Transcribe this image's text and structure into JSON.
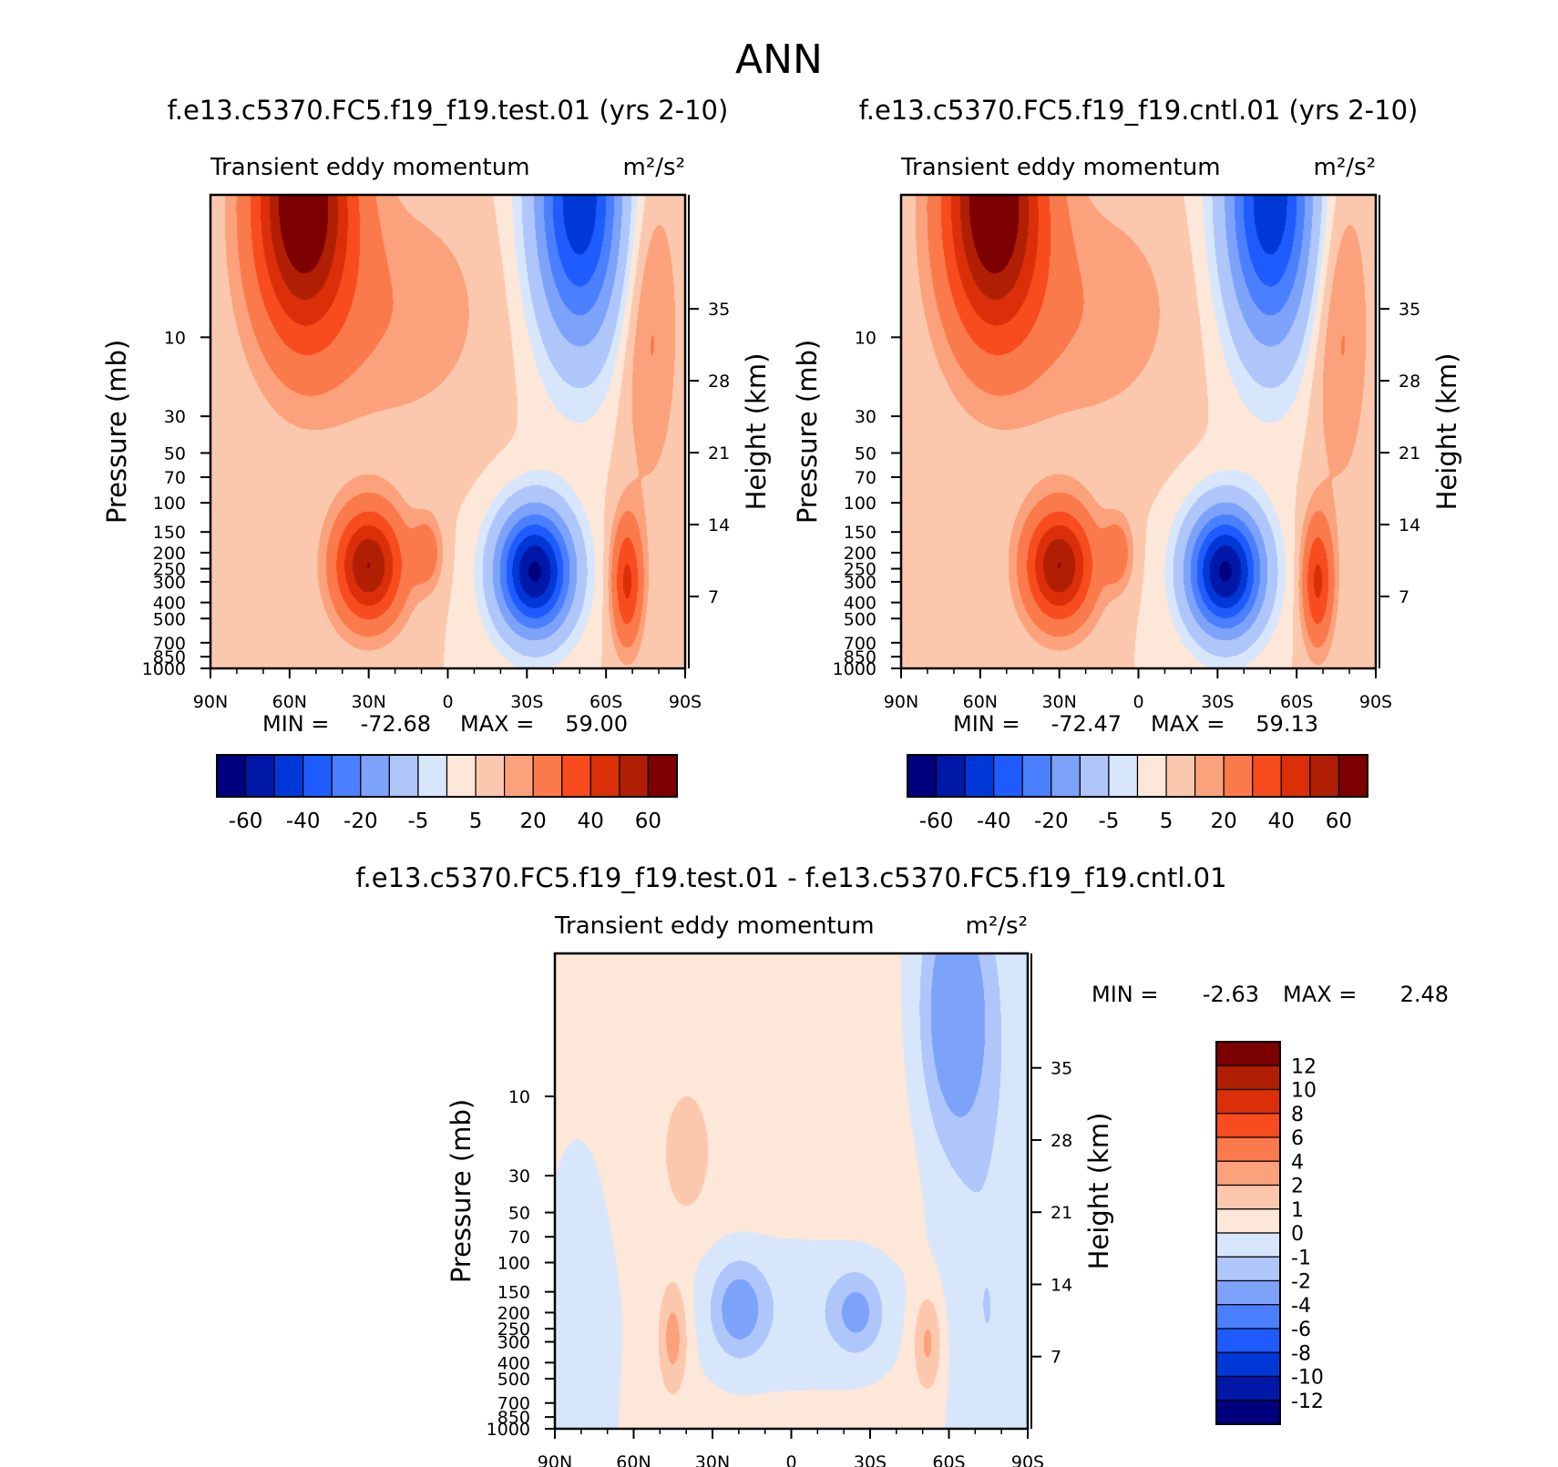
{
  "page_title": "ANN",
  "colors": {
    "abs_palette": [
      "#00007f",
      "#0018a8",
      "#0038d8",
      "#1f5cff",
      "#4a80ff",
      "#7da2fa",
      "#aec6fa",
      "#d8e6fb",
      "#fde7d8",
      "#fcc8ad",
      "#fba27c",
      "#fb7a4c",
      "#f84b1e",
      "#da2f08",
      "#b01f04",
      "#7d0000"
    ],
    "diff_palette": [
      "#00007f",
      "#0018a8",
      "#0038d8",
      "#1f5cff",
      "#4a80ff",
      "#7da2fa",
      "#aec6fa",
      "#d8e6fb",
      "#fde7d8",
      "#fcc8ad",
      "#fba27c",
      "#fb7a4c",
      "#f84b1e",
      "#da2f08",
      "#b01f04",
      "#7d0000"
    ]
  },
  "chart_data": [
    {
      "type": "heatmap",
      "case_title": "f.e13.c5370.FC5.f19_f19.test.01 (yrs 2-10)",
      "variable": "Transient eddy momentum",
      "units": "m²/s²",
      "ylabel": "Pressure (mb)",
      "y2label": "Height (km)",
      "x_ticks": [
        "90N",
        "60N",
        "30N",
        "0",
        "30S",
        "60S",
        "90S"
      ],
      "y_ticks": [
        "10",
        "30",
        "50",
        "70",
        "100",
        "150",
        "200",
        "250",
        "300",
        "400",
        "500",
        "700",
        "850",
        "1000"
      ],
      "y2_ticks": [
        "35",
        "28",
        "21",
        "14",
        "7"
      ],
      "min": -72.68,
      "max": 59.0,
      "min_label": "MIN = ",
      "max_label": "MAX = ",
      "min_text": "-72.68",
      "max_text": "59.00",
      "colorbar_labels": [
        "-60",
        "-40",
        "-20",
        "-5",
        "5",
        "20",
        "40",
        "60"
      ],
      "features": [
        {
          "lat": 55,
          "p": 1.5,
          "amp": 62,
          "wlat": 13,
          "wz": 1.3
        },
        {
          "lat": -50,
          "p": 1.5,
          "amp": -58,
          "wlat": 12,
          "wz": 1.4
        },
        {
          "lat": 30,
          "p": 240,
          "amp": 50,
          "wlat": 9,
          "wz": 0.55
        },
        {
          "lat": -33,
          "p": 260,
          "amp": -72,
          "wlat": 10,
          "wz": 0.6
        },
        {
          "lat": 8,
          "p": 200,
          "amp": 15,
          "wlat": 4,
          "wz": 0.35
        },
        {
          "lat": -68,
          "p": 300,
          "amp": 32,
          "wlat": 4,
          "wz": 0.6
        },
        {
          "lat": -76,
          "p": 8,
          "amp": 12,
          "wlat": 8,
          "wz": 1.6
        },
        {
          "lat": 22,
          "p": 7,
          "amp": 9,
          "wlat": 28,
          "wz": 1.2
        }
      ]
    },
    {
      "type": "heatmap",
      "case_title": "f.e13.c5370.FC5.f19_f19.cntl.01 (yrs 2-10)",
      "variable": "Transient eddy momentum",
      "units": "m²/s²",
      "ylabel": "Pressure (mb)",
      "y2label": "Height (km)",
      "x_ticks": [
        "90N",
        "60N",
        "30N",
        "0",
        "30S",
        "60S",
        "90S"
      ],
      "y_ticks": [
        "10",
        "30",
        "50",
        "70",
        "100",
        "150",
        "200",
        "250",
        "300",
        "400",
        "500",
        "700",
        "850",
        "1000"
      ],
      "y2_ticks": [
        "35",
        "28",
        "21",
        "14",
        "7"
      ],
      "min": -72.47,
      "max": 59.13,
      "min_label": "MIN = ",
      "max_label": "MAX = ",
      "min_text": "-72.47",
      "max_text": "59.13",
      "colorbar_labels": [
        "-60",
        "-40",
        "-20",
        "-5",
        "5",
        "20",
        "40",
        "60"
      ],
      "features": [
        {
          "lat": 55,
          "p": 1.5,
          "amp": 62,
          "wlat": 13,
          "wz": 1.3
        },
        {
          "lat": -50,
          "p": 1.5,
          "amp": -58,
          "wlat": 12,
          "wz": 1.4
        },
        {
          "lat": 30,
          "p": 240,
          "amp": 50,
          "wlat": 9,
          "wz": 0.55
        },
        {
          "lat": -33,
          "p": 260,
          "amp": -72,
          "wlat": 10,
          "wz": 0.6
        },
        {
          "lat": 8,
          "p": 200,
          "amp": 15,
          "wlat": 4,
          "wz": 0.35
        },
        {
          "lat": -68,
          "p": 300,
          "amp": 32,
          "wlat": 4,
          "wz": 0.6
        },
        {
          "lat": -76,
          "p": 8,
          "amp": 12,
          "wlat": 8,
          "wz": 1.6
        },
        {
          "lat": 22,
          "p": 7,
          "amp": 9,
          "wlat": 28,
          "wz": 1.2
        }
      ]
    },
    {
      "type": "heatmap",
      "case_title": "f.e13.c5370.FC5.f19_f19.test.01 - f.e13.c5370.FC5.f19_f19.cntl.01",
      "variable": "Transient eddy momentum",
      "units": "m²/s²",
      "ylabel": "Pressure (mb)",
      "y2label": "Height (km)",
      "x_ticks": [
        "90N",
        "60N",
        "30N",
        "0",
        "30S",
        "60S",
        "90S"
      ],
      "y_ticks": [
        "10",
        "30",
        "50",
        "70",
        "100",
        "150",
        "200",
        "250",
        "300",
        "400",
        "500",
        "700",
        "850",
        "1000"
      ],
      "y2_ticks": [
        "35",
        "28",
        "21",
        "14",
        "7"
      ],
      "min": -2.63,
      "max": 2.48,
      "min_label": "MIN = ",
      "max_label": "MAX = ",
      "min_text": "-2.63",
      "max_text": "2.48",
      "colorbar_labels": [
        "12",
        "10",
        "8",
        "6",
        "4",
        "2",
        "1",
        "0",
        "-1",
        "-2",
        "-4",
        "-6",
        "-8",
        "-10",
        "-12"
      ],
      "features": [
        {
          "lat": 0,
          "p": 30,
          "amp": 0.6,
          "wlat": 60,
          "wz": 3.0
        },
        {
          "lat": 40,
          "p": 22,
          "amp": 1.3,
          "wlat": 6,
          "wz": 0.6
        },
        {
          "lat": -62,
          "p": 3,
          "amp": -3.2,
          "wlat": 9,
          "wz": 1.2
        },
        {
          "lat": -72,
          "p": 10,
          "amp": -1.0,
          "wlat": 14,
          "wz": 2.0
        },
        {
          "lat": 20,
          "p": 190,
          "amp": -2.6,
          "wlat": 7,
          "wz": 0.45
        },
        {
          "lat": -25,
          "p": 200,
          "amp": -2.2,
          "wlat": 7,
          "wz": 0.4
        },
        {
          "lat": 45,
          "p": 280,
          "amp": 2.4,
          "wlat": 4,
          "wz": 0.55
        },
        {
          "lat": -52,
          "p": 300,
          "amp": 2.2,
          "wlat": 4,
          "wz": 0.5
        },
        {
          "lat": 0,
          "p": 180,
          "amp": -1.1,
          "wlat": 30,
          "wz": 0.8
        },
        {
          "lat": 80,
          "p": 250,
          "amp": -1.1,
          "wlat": 8,
          "wz": 1.5
        },
        {
          "lat": -75,
          "p": 300,
          "amp": -0.9,
          "wlat": 10,
          "wz": 1.4
        }
      ]
    }
  ]
}
